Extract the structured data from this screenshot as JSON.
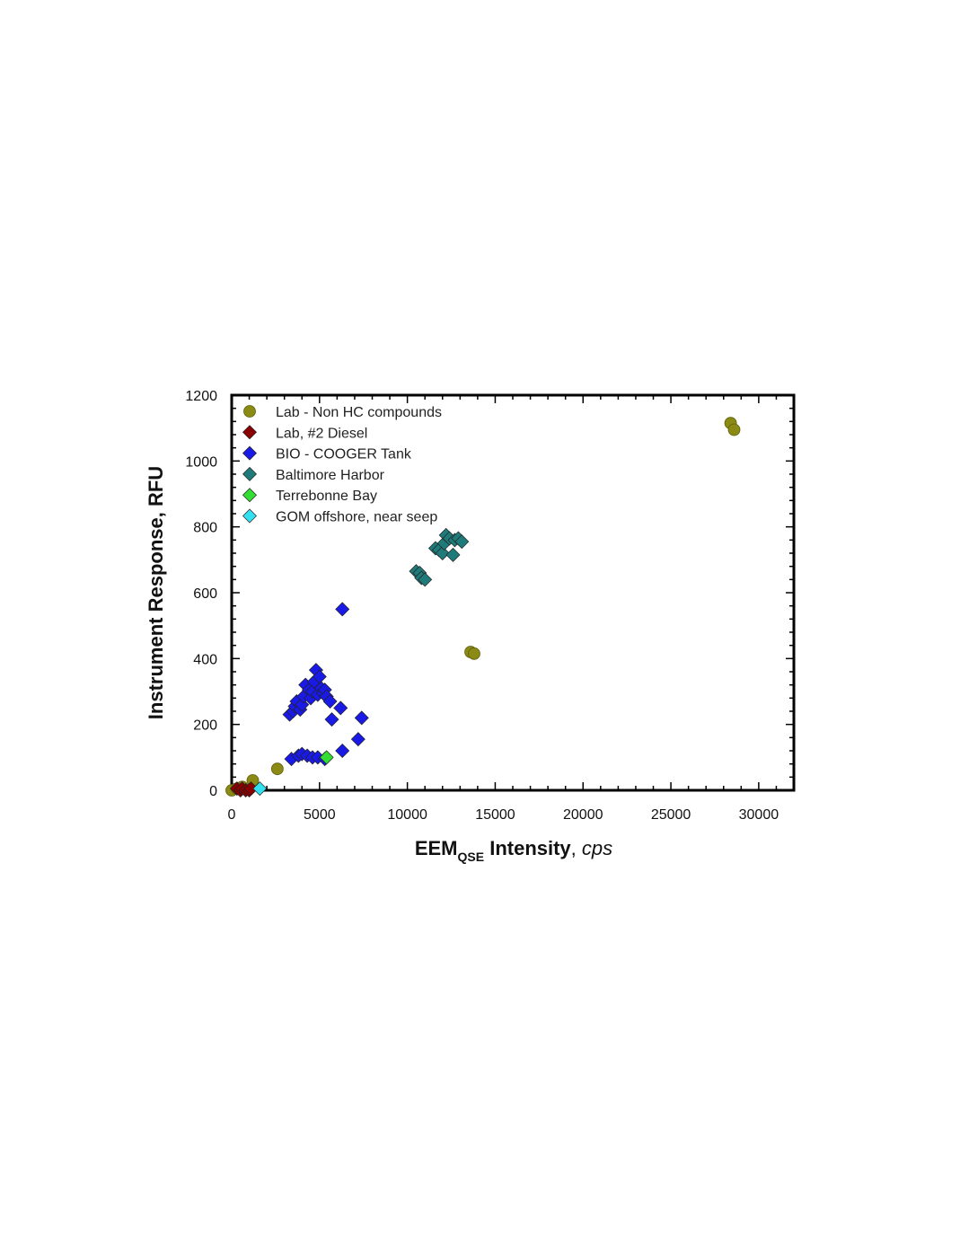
{
  "chart_data": {
    "type": "scatter",
    "xlabel": {
      "main": "EEM",
      "sub": "QSE",
      "bold_rest": " Intensity",
      "italic": "cps"
    },
    "ylabel": "Instrument Response, RFU",
    "xlim": [
      0,
      32000
    ],
    "ylim": [
      0,
      1200
    ],
    "x_ticks": [
      0,
      5000,
      10000,
      15000,
      20000,
      25000,
      30000
    ],
    "y_ticks": [
      0,
      200,
      400,
      600,
      800,
      1000,
      1200
    ],
    "grid": false,
    "legend_position": "top-left",
    "series": [
      {
        "name": "Lab - Non HC compounds",
        "marker": "circle",
        "color": "#8a8a14",
        "points": [
          [
            0,
            0
          ],
          [
            300,
            5
          ],
          [
            600,
            10
          ],
          [
            1200,
            30
          ],
          [
            2600,
            65
          ],
          [
            13600,
            420
          ],
          [
            13800,
            415
          ],
          [
            28400,
            1115
          ],
          [
            28600,
            1095
          ]
        ]
      },
      {
        "name": "Lab, #2 Diesel",
        "marker": "diamond",
        "color": "#8b0000",
        "points": [
          [
            300,
            5
          ],
          [
            500,
            0
          ],
          [
            600,
            5
          ],
          [
            800,
            0
          ],
          [
            1000,
            0
          ],
          [
            1100,
            5
          ]
        ]
      },
      {
        "name": "BIO - COOGER Tank",
        "marker": "diamond",
        "color": "#1a1ae6",
        "points": [
          [
            3300,
            230
          ],
          [
            3500,
            240
          ],
          [
            3600,
            255
          ],
          [
            3700,
            270
          ],
          [
            3900,
            245
          ],
          [
            4000,
            260
          ],
          [
            4100,
            285
          ],
          [
            4200,
            320
          ],
          [
            4400,
            305
          ],
          [
            4500,
            280
          ],
          [
            4600,
            300
          ],
          [
            4700,
            330
          ],
          [
            4800,
            365
          ],
          [
            4900,
            290
          ],
          [
            5000,
            345
          ],
          [
            5100,
            310
          ],
          [
            5200,
            295
          ],
          [
            5300,
            305
          ],
          [
            5400,
            285
          ],
          [
            5600,
            270
          ],
          [
            5700,
            215
          ],
          [
            6200,
            250
          ],
          [
            6300,
            550
          ],
          [
            7400,
            220
          ],
          [
            3400,
            95
          ],
          [
            3800,
            105
          ],
          [
            4000,
            110
          ],
          [
            4300,
            105
          ],
          [
            4600,
            100
          ],
          [
            4900,
            100
          ],
          [
            5300,
            95
          ],
          [
            6300,
            120
          ],
          [
            7200,
            155
          ]
        ]
      },
      {
        "name": "Baltimore Harbor",
        "marker": "diamond",
        "color": "#1f7a7a",
        "points": [
          [
            10500,
            665
          ],
          [
            10700,
            660
          ],
          [
            10800,
            645
          ],
          [
            11000,
            640
          ],
          [
            11600,
            735
          ],
          [
            11800,
            730
          ],
          [
            12000,
            720
          ],
          [
            12100,
            750
          ],
          [
            12200,
            775
          ],
          [
            12400,
            765
          ],
          [
            12600,
            715
          ],
          [
            12700,
            760
          ],
          [
            12900,
            765
          ],
          [
            13100,
            755
          ]
        ]
      },
      {
        "name": "Terrebonne Bay",
        "marker": "diamond",
        "color": "#33dd33",
        "points": [
          [
            5400,
            100
          ]
        ]
      },
      {
        "name": "GOM offshore, near seep",
        "marker": "diamond",
        "color": "#33e0f0",
        "points": [
          [
            1600,
            5
          ]
        ]
      }
    ]
  }
}
